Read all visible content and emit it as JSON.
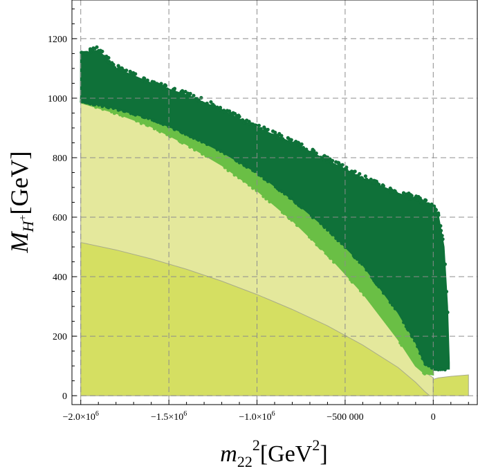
{
  "chart_data": {
    "type": "scatter",
    "title": "",
    "xlabel": "m22^2[GeV^2]",
    "ylabel": "M_{H+}[GeV]",
    "xlim": [
      -2050000,
      250000
    ],
    "ylim": [
      -30,
      1330
    ],
    "grid": true,
    "x_ticks": [
      {
        "value": -2000000,
        "label": "−2.0×10",
        "exp": "6"
      },
      {
        "value": -1500000,
        "label": "−1.5×10",
        "exp": "6"
      },
      {
        "value": -1000000,
        "label": "−1.0×10",
        "exp": "6"
      },
      {
        "value": -500000,
        "label": "−500 000",
        "exp": ""
      },
      {
        "value": 0,
        "label": "0",
        "exp": ""
      }
    ],
    "y_ticks": [
      {
        "value": 0,
        "label": "0"
      },
      {
        "value": 200,
        "label": "200"
      },
      {
        "value": 400,
        "label": "400"
      },
      {
        "value": 600,
        "label": "600"
      },
      {
        "value": 800,
        "label": "800"
      },
      {
        "value": 1000,
        "label": "1000"
      },
      {
        "value": 1200,
        "label": "1200"
      }
    ],
    "axis_titles": {
      "x_main": "m",
      "x_sub": "22",
      "x_sup": "2",
      "x_bracket_open": "[GeV",
      "x_bracket_sup": "2",
      "x_bracket_close": "]",
      "y_main": "M",
      "y_sub": "H",
      "y_subsup": "+",
      "y_bracket": "[GeV]"
    },
    "colors": {
      "dark_points": "#0f7139",
      "light_points": "#6abf45",
      "pale_region": "#e4e89c",
      "inner_region": "#d5df62",
      "region_edge": "#a8ab8a",
      "grid": "#8c8c8c"
    },
    "series": [
      {
        "name": "dark green points",
        "kind": "band",
        "upper": [
          [
            -2000000,
            1150
          ],
          [
            -1900000,
            1160
          ],
          [
            -1800000,
            1100
          ],
          [
            -1600000,
            1050
          ],
          [
            -1400000,
            1010
          ],
          [
            -1200000,
            960
          ],
          [
            -1000000,
            900
          ],
          [
            -800000,
            850
          ],
          [
            -600000,
            790
          ],
          [
            -400000,
            730
          ],
          [
            -200000,
            680
          ],
          [
            0,
            640
          ],
          [
            30000,
            600
          ],
          [
            60000,
            500
          ],
          [
            80000,
            300
          ],
          [
            90000,
            110
          ]
        ],
        "lower": [
          [
            -2000000,
            990
          ],
          [
            -1800000,
            965
          ],
          [
            -1600000,
            930
          ],
          [
            -1400000,
            880
          ],
          [
            -1200000,
            820
          ],
          [
            -1000000,
            750
          ],
          [
            -800000,
            660
          ],
          [
            -600000,
            560
          ],
          [
            -400000,
            440
          ],
          [
            -200000,
            280
          ],
          [
            -100000,
            180
          ],
          [
            -50000,
            110
          ],
          [
            0,
            90
          ],
          [
            90000,
            90
          ]
        ]
      },
      {
        "name": "light green points",
        "kind": "band",
        "upper": [
          [
            -2000000,
            1000
          ],
          [
            -1800000,
            975
          ],
          [
            -1600000,
            935
          ],
          [
            -1400000,
            885
          ],
          [
            -1200000,
            825
          ],
          [
            -1000000,
            755
          ],
          [
            -800000,
            665
          ],
          [
            -600000,
            565
          ],
          [
            -400000,
            445
          ],
          [
            -200000,
            285
          ],
          [
            -100000,
            185
          ],
          [
            -50000,
            115
          ],
          [
            0,
            95
          ]
        ],
        "lower": [
          [
            -2000000,
            985
          ],
          [
            -1800000,
            950
          ],
          [
            -1600000,
            905
          ],
          [
            -1400000,
            845
          ],
          [
            -1200000,
            775
          ],
          [
            -1000000,
            690
          ],
          [
            -800000,
            590
          ],
          [
            -600000,
            475
          ],
          [
            -400000,
            345
          ],
          [
            -200000,
            190
          ],
          [
            -100000,
            100
          ],
          [
            -50000,
            75
          ],
          [
            0,
            70
          ]
        ]
      },
      {
        "name": "pale allowed region",
        "kind": "area",
        "boundary": [
          [
            -2000000,
            990
          ],
          [
            -1800000,
            960
          ],
          [
            -1600000,
            920
          ],
          [
            -1400000,
            865
          ],
          [
            -1200000,
            800
          ],
          [
            -1000000,
            715
          ],
          [
            -800000,
            615
          ],
          [
            -600000,
            500
          ],
          [
            -400000,
            370
          ],
          [
            -200000,
            210
          ],
          [
            -100000,
            120
          ],
          [
            -50000,
            80
          ],
          [
            0,
            60
          ]
        ]
      },
      {
        "name": "inner region",
        "kind": "area",
        "boundary": [
          [
            -2000000,
            515
          ],
          [
            -1800000,
            490
          ],
          [
            -1600000,
            460
          ],
          [
            -1400000,
            425
          ],
          [
            -1200000,
            385
          ],
          [
            -1000000,
            340
          ],
          [
            -800000,
            290
          ],
          [
            -600000,
            235
          ],
          [
            -400000,
            170
          ],
          [
            -200000,
            95
          ],
          [
            -100000,
            45
          ],
          [
            -50000,
            15
          ],
          [
            -20000,
            0
          ]
        ]
      },
      {
        "name": "small inner region right",
        "kind": "area",
        "boundary": [
          [
            0,
            55
          ],
          [
            30000,
            60
          ],
          [
            100000,
            65
          ],
          [
            200000,
            70
          ]
        ]
      }
    ]
  }
}
